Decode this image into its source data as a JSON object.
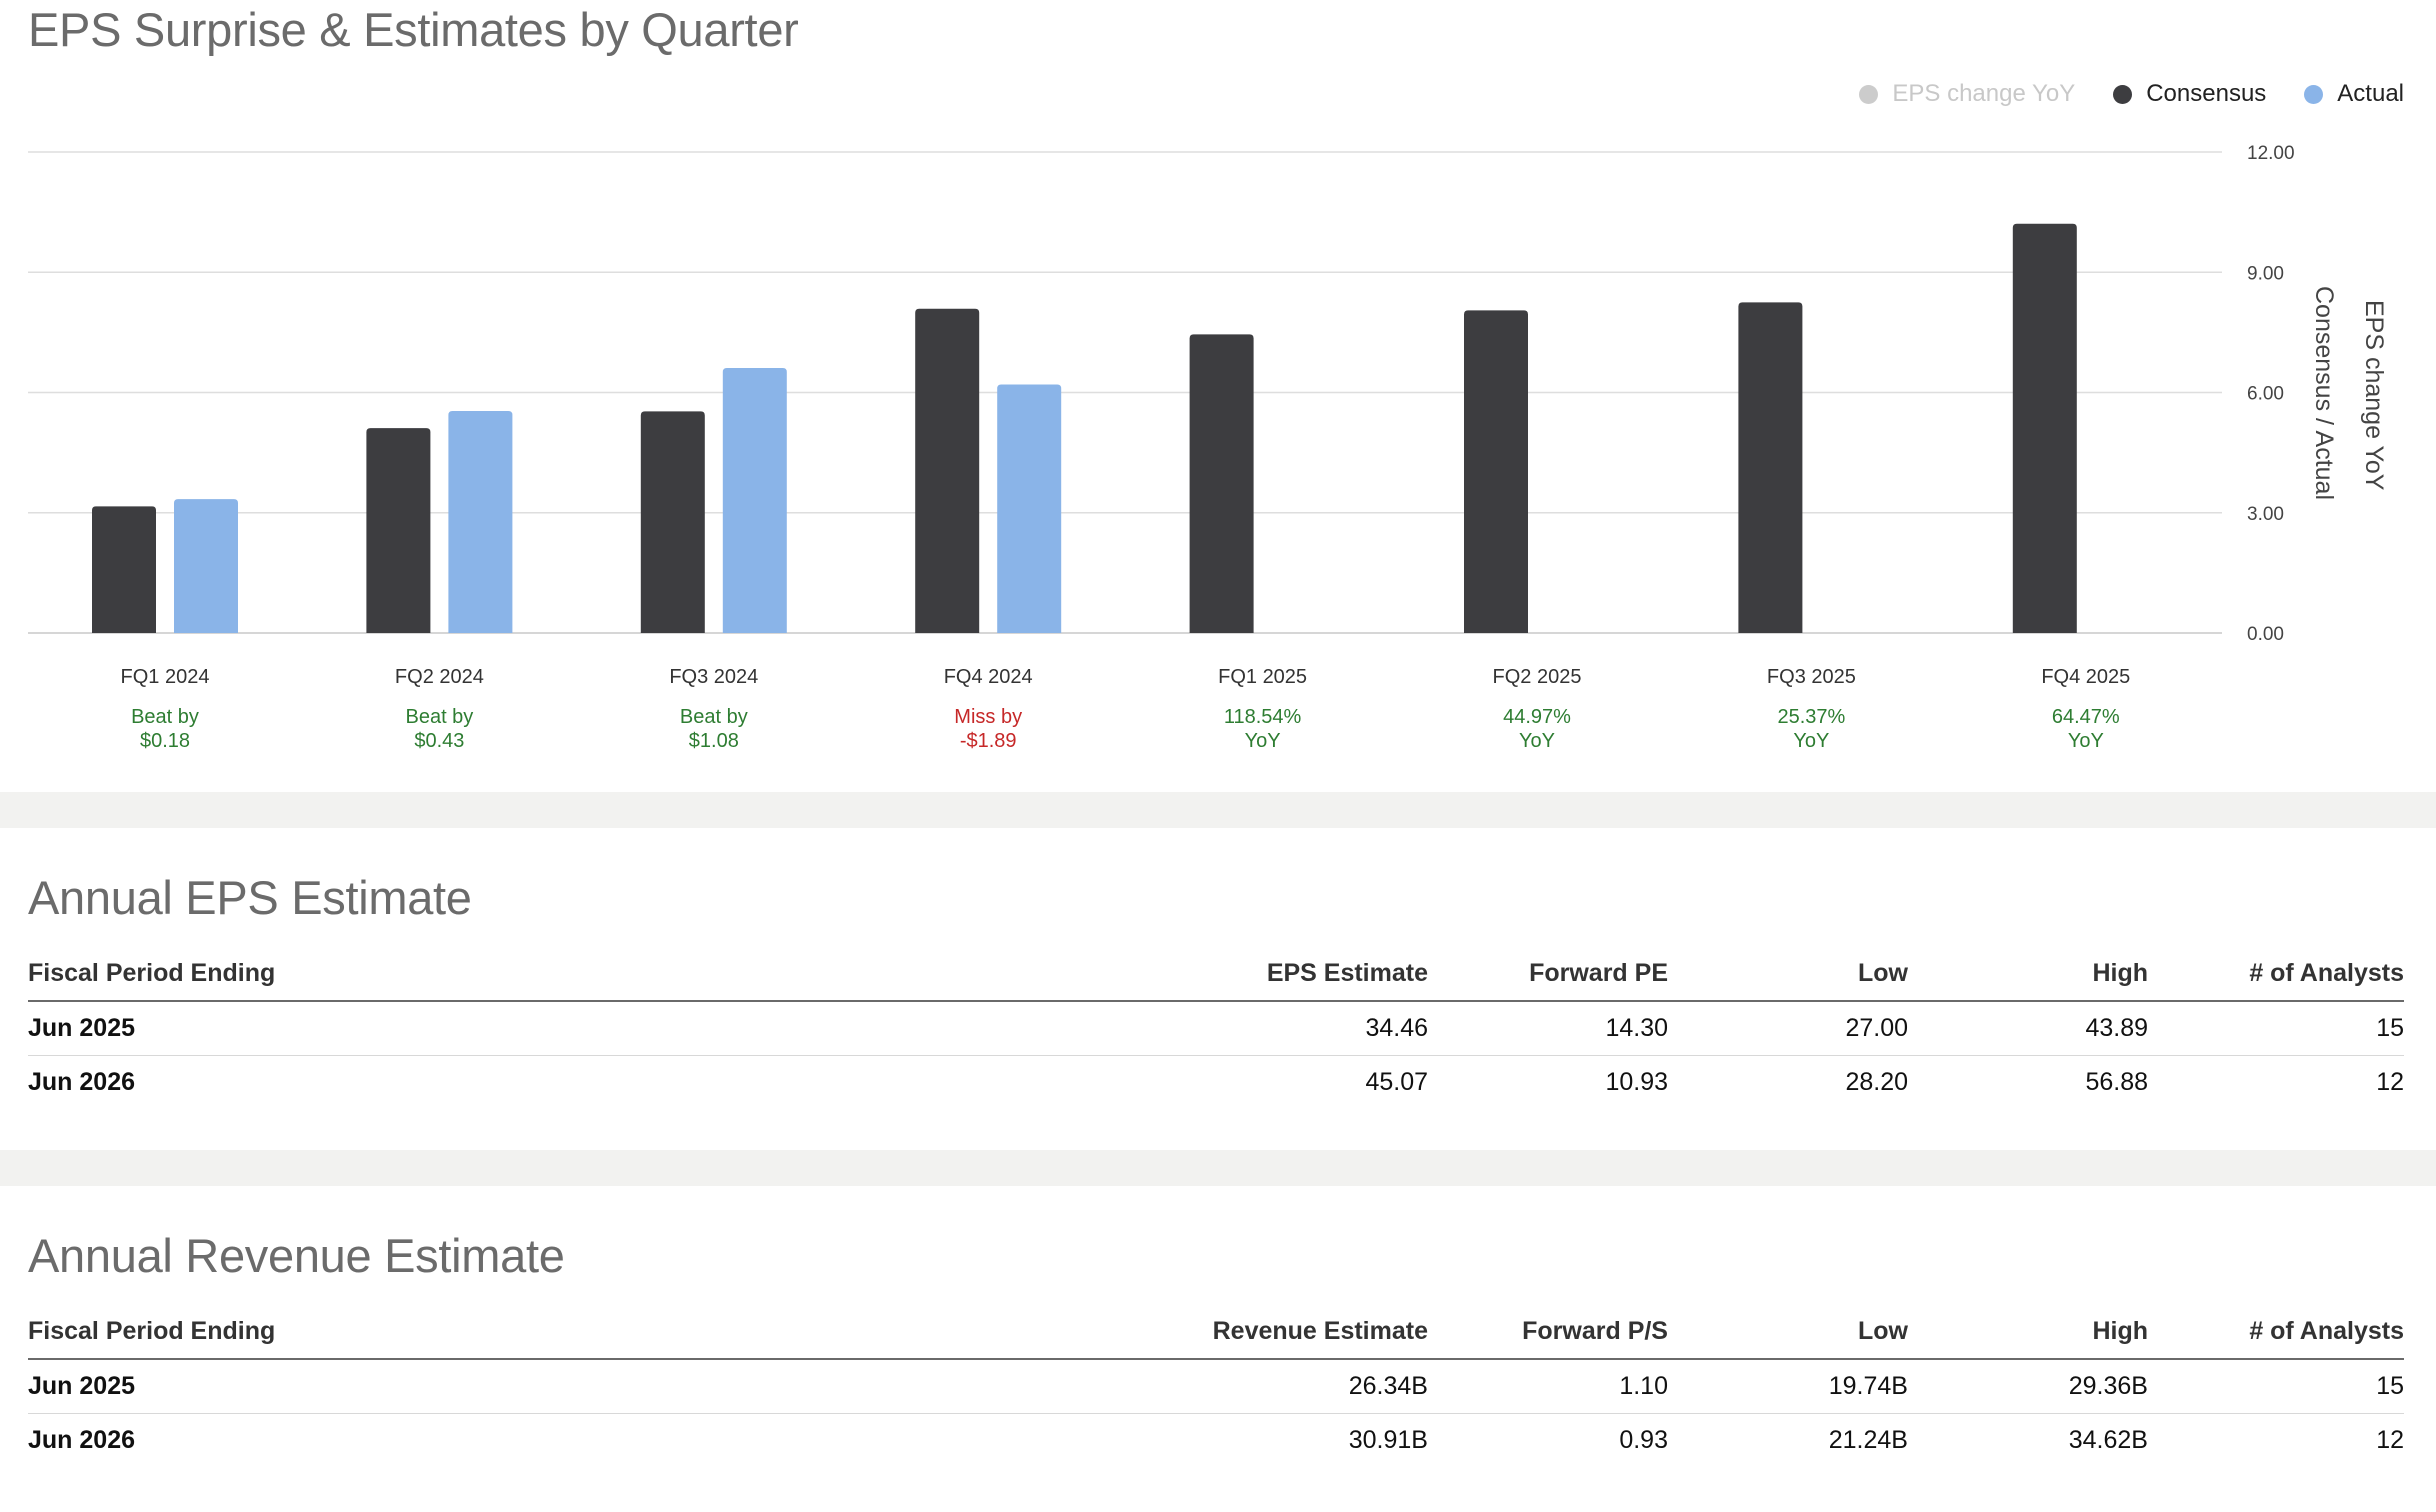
{
  "chart_section": {
    "title": "EPS Surprise & Estimates by Quarter",
    "legend": [
      {
        "label": "EPS change YoY",
        "color": "#cccccc",
        "text_color": "#c8c8c8"
      },
      {
        "label": "Consensus",
        "color": "#3d3d40",
        "text_color": "#222222"
      },
      {
        "label": "Actual",
        "color": "#8ab4e8",
        "text_color": "#222222"
      }
    ],
    "annotations": [
      {
        "line1": "Beat by",
        "line2": "$0.18",
        "color": "#2e7d32"
      },
      {
        "line1": "Beat by",
        "line2": "$0.43",
        "color": "#2e7d32"
      },
      {
        "line1": "Beat by",
        "line2": "$1.08",
        "color": "#2e7d32"
      },
      {
        "line1": "Miss by",
        "line2": "-$1.89",
        "color": "#c62828"
      },
      {
        "line1": "118.54%",
        "line2": "YoY",
        "color": "#2e7d32"
      },
      {
        "line1": "44.97%",
        "line2": "YoY",
        "color": "#2e7d32"
      },
      {
        "line1": "25.37%",
        "line2": "YoY",
        "color": "#2e7d32"
      },
      {
        "line1": "64.47%",
        "line2": "YoY",
        "color": "#2e7d32"
      }
    ]
  },
  "chart_data": {
    "type": "bar",
    "title": "EPS Surprise & Estimates by Quarter",
    "categories": [
      "FQ1 2024",
      "FQ2 2024",
      "FQ3 2024",
      "FQ4 2024",
      "FQ1 2025",
      "FQ2 2025",
      "FQ3 2025",
      "FQ4 2025"
    ],
    "series": [
      {
        "name": "Consensus",
        "color": "#3d3d40",
        "values": [
          3.16,
          5.11,
          5.53,
          8.09,
          7.45,
          8.05,
          8.25,
          10.21
        ]
      },
      {
        "name": "Actual",
        "color": "#8ab4e8",
        "values": [
          3.34,
          5.54,
          6.61,
          6.2,
          null,
          null,
          null,
          null
        ]
      },
      {
        "name": "EPS change YoY",
        "color": "#cccccc",
        "values": [
          null,
          null,
          null,
          null,
          null,
          null,
          null,
          null
        ]
      }
    ],
    "yticks": [
      "0.00",
      "3.00",
      "6.00",
      "9.00",
      "12.00"
    ],
    "ylim": [
      0,
      12
    ],
    "ylabel": "Consensus / Actual",
    "ylabel2": "EPS change YoY",
    "legend_position": "top-right",
    "grid": true
  },
  "eps_table": {
    "title": "Annual EPS Estimate",
    "headers": [
      "Fiscal Period Ending",
      "EPS Estimate",
      "Forward PE",
      "Low",
      "High",
      "# of Analysts"
    ],
    "rows": [
      [
        "Jun 2025",
        "34.46",
        "14.30",
        "27.00",
        "43.89",
        "15"
      ],
      [
        "Jun 2026",
        "45.07",
        "10.93",
        "28.20",
        "56.88",
        "12"
      ]
    ]
  },
  "revenue_table": {
    "title": "Annual Revenue Estimate",
    "headers": [
      "Fiscal Period Ending",
      "Revenue Estimate",
      "Forward P/S",
      "Low",
      "High",
      "# of Analysts"
    ],
    "rows": [
      [
        "Jun 2025",
        "26.34B",
        "1.10",
        "19.74B",
        "29.36B",
        "15"
      ],
      [
        "Jun 2026",
        "30.91B",
        "0.93",
        "21.24B",
        "34.62B",
        "12"
      ]
    ]
  }
}
